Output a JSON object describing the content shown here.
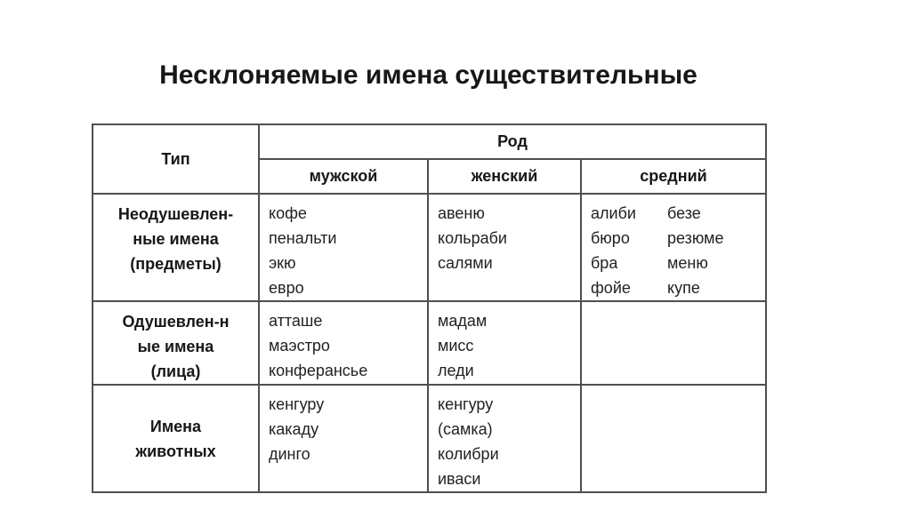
{
  "title": "Несклоняемые имена существительные",
  "table": {
    "type_header": "Тип",
    "group_header": "Род",
    "gender_headers": [
      "мужской",
      "женский",
      "средний"
    ],
    "rows": [
      {
        "type_lines": [
          "Неодушевлен-",
          "ные имена",
          "(предметы)"
        ],
        "masculine": [
          "кофе",
          "пенальти",
          "экю",
          "евро"
        ],
        "feminine": [
          "авеню",
          "кольраби",
          "салями"
        ],
        "neuter_col1": [
          "алиби",
          "бюро",
          "бра",
          "фойе"
        ],
        "neuter_col2": [
          "безе",
          "резюме",
          "меню",
          "купе"
        ]
      },
      {
        "type_lines": [
          "Одушевлен-н",
          "ые имена",
          "(лица)"
        ],
        "masculine": [
          "атташе",
          "маэстро",
          "конферансье"
        ],
        "feminine": [
          "мадам",
          "мисс",
          "леди"
        ],
        "neuter_col1": [],
        "neuter_col2": []
      },
      {
        "type_lines": [
          "Имена",
          "животных"
        ],
        "masculine": [
          "кенгуру",
          "какаду",
          "динго"
        ],
        "feminine": [
          "кенгуру",
          "(самка)",
          "колибри",
          "иваси"
        ],
        "neuter_col1": [],
        "neuter_col2": []
      }
    ]
  },
  "colors": {
    "background": "#ffffff",
    "border": "#4f4f4f",
    "text": "#1c1c1c"
  }
}
